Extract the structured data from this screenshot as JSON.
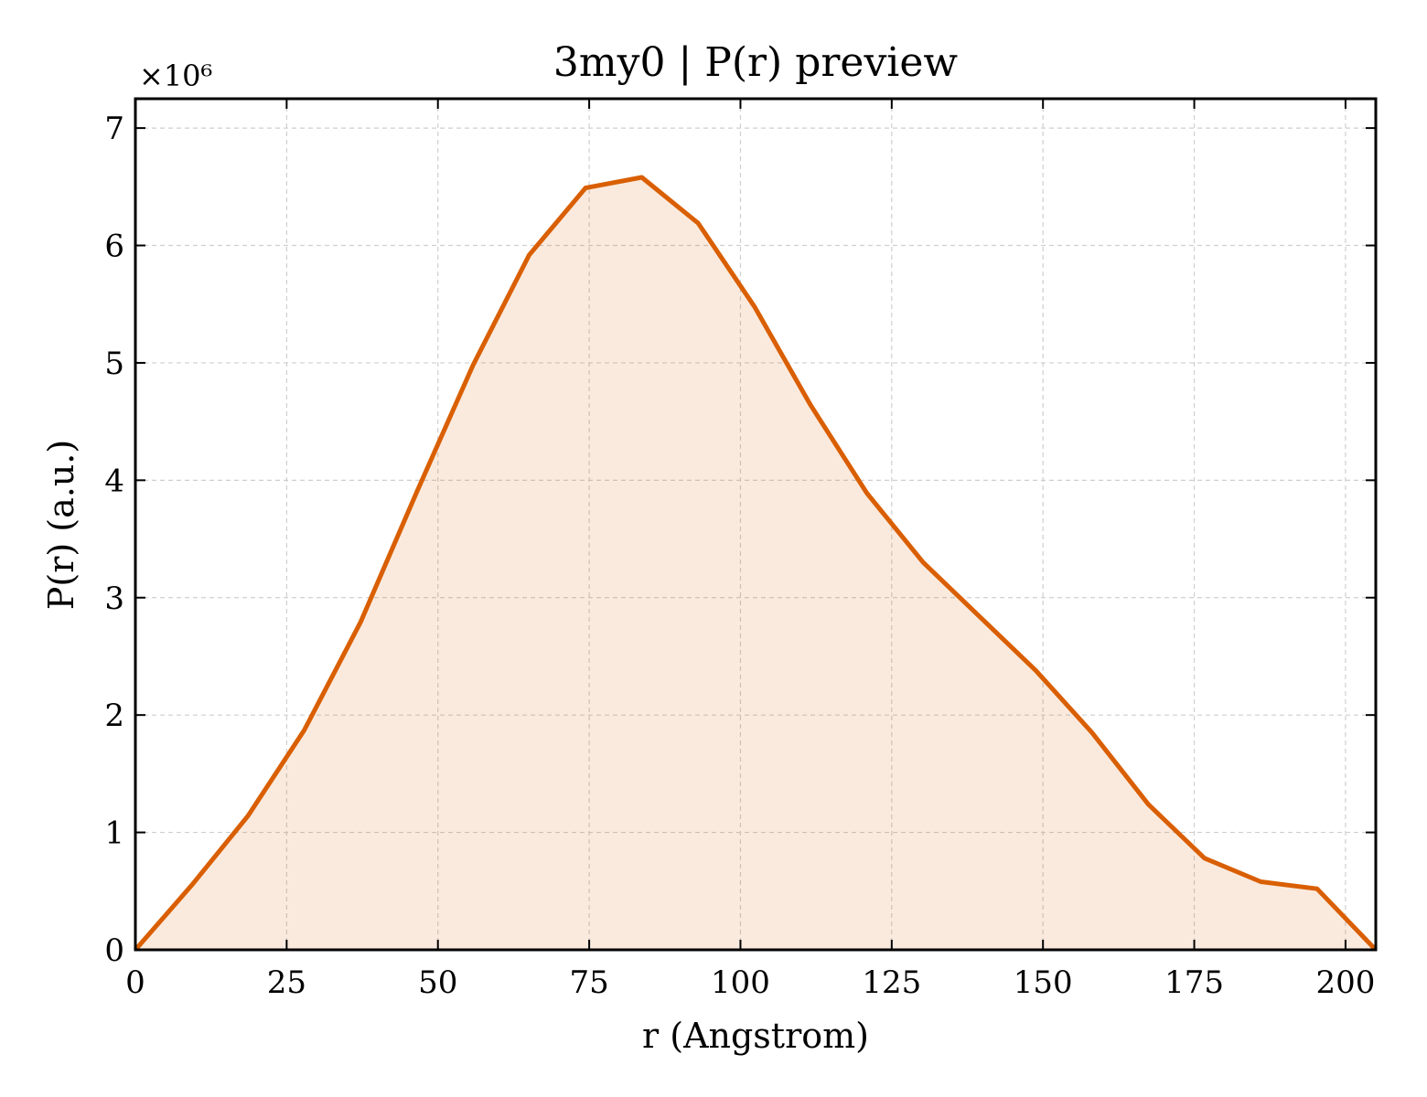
{
  "chart_data": {
    "type": "area",
    "title": "3my0 | P(r) preview",
    "xlabel": "r (Angstrom)",
    "ylabel": "P(r) (a.u.)",
    "y_offset_label": "×10⁶",
    "xlim": [
      0,
      205
    ],
    "ylim": [
      0,
      7.25
    ],
    "xticks": [
      0,
      25,
      50,
      75,
      100,
      125,
      150,
      175,
      200
    ],
    "yticks": [
      0,
      1,
      2,
      3,
      4,
      5,
      6,
      7
    ],
    "grid": true,
    "line_color": "#d95f02",
    "fill_color": "#d95f02",
    "fill_opacity": 0.13,
    "series": [
      {
        "x": [
          0,
          9.3,
          18.6,
          27.9,
          37.2,
          46.5,
          55.8,
          65.1,
          74.4,
          83.7,
          93.0,
          102.3,
          111.6,
          120.9,
          130.2,
          139.5,
          148.8,
          158.1,
          167.4,
          176.7,
          186.0,
          195.3,
          205.0
        ],
        "y": [
          0,
          0.55,
          1.14,
          1.87,
          2.79,
          3.9,
          4.98,
          5.92,
          6.49,
          6.58,
          6.19,
          5.48,
          4.64,
          3.89,
          3.3,
          2.84,
          2.38,
          1.85,
          1.24,
          0.78,
          0.58,
          0.52,
          0
        ]
      }
    ]
  }
}
